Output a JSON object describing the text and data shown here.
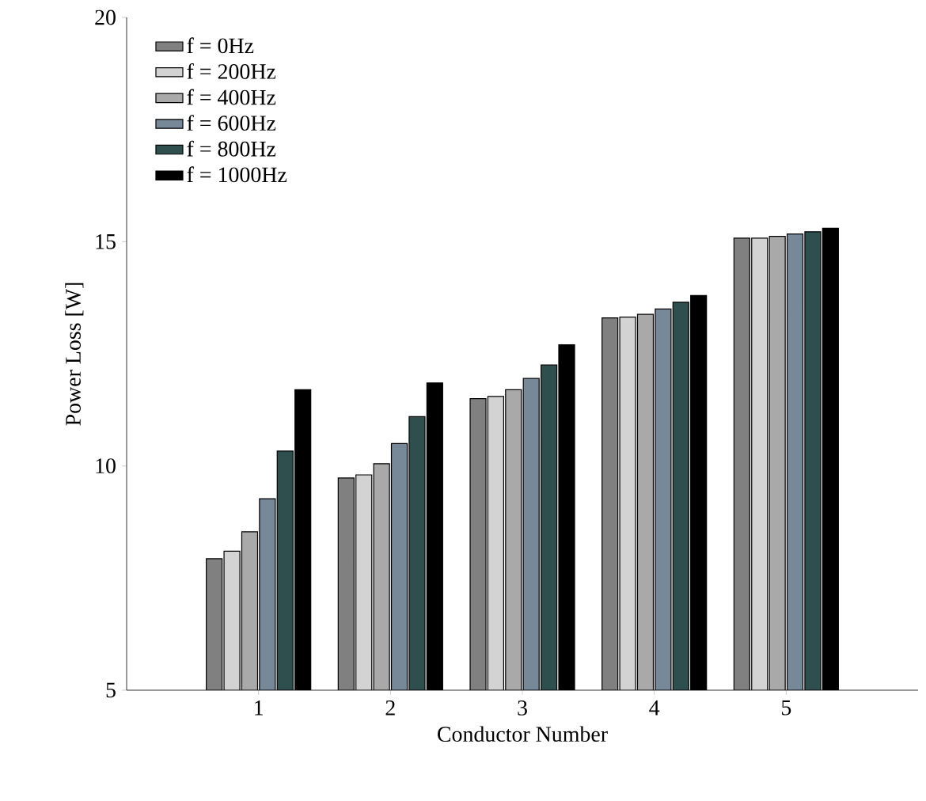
{
  "chart_data": {
    "type": "bar",
    "xlabel": "Conductor Number",
    "ylabel": "Power Loss [W]",
    "categories": [
      "1",
      "2",
      "3",
      "4",
      "5"
    ],
    "ylim": [
      5,
      20
    ],
    "yticks": [
      5,
      10,
      15,
      20
    ],
    "legend": "top left",
    "series": [
      {
        "name": "f = 0Hz",
        "color": "#808080",
        "values": [
          7.93,
          9.73,
          11.5,
          13.3,
          15.08
        ]
      },
      {
        "name": "f = 200Hz",
        "color": "#d3d3d3",
        "values": [
          8.1,
          9.8,
          11.55,
          13.32,
          15.08
        ]
      },
      {
        "name": "f = 400Hz",
        "color": "#a9a9a9",
        "values": [
          8.53,
          10.05,
          11.7,
          13.38,
          15.12
        ]
      },
      {
        "name": "f = 600Hz",
        "color": "#778899",
        "values": [
          9.27,
          10.5,
          11.95,
          13.5,
          15.17
        ]
      },
      {
        "name": "f = 800Hz",
        "color": "#2f4f4f",
        "values": [
          10.33,
          11.1,
          12.25,
          13.65,
          15.22
        ]
      },
      {
        "name": "f = 1000Hz",
        "color": "#000000",
        "values": [
          11.7,
          11.85,
          12.7,
          13.8,
          15.3
        ]
      }
    ]
  }
}
